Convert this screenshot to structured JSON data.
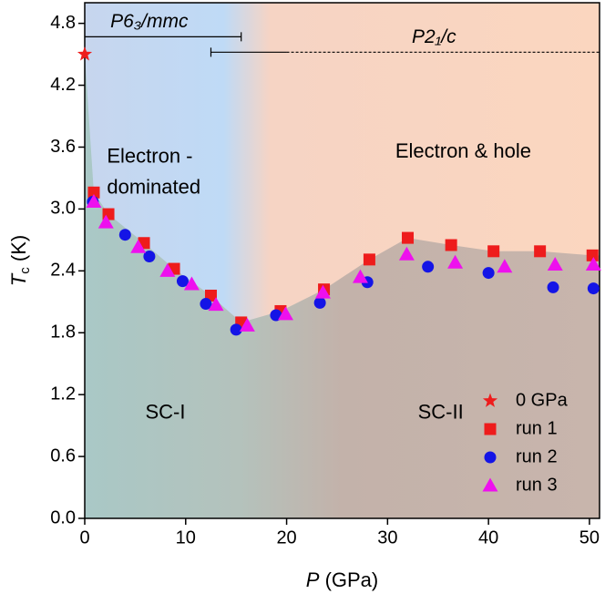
{
  "chart_data": {
    "type": "scatter",
    "x_label": {
      "symbol": "P",
      "unit": "(GPa)"
    },
    "y_label": {
      "symbol": "T",
      "subscript": "c",
      "unit": "(K)"
    },
    "xlim": [
      0,
      51
    ],
    "ylim": [
      0,
      5.0
    ],
    "xticks": [
      0,
      10,
      20,
      30,
      40,
      50
    ],
    "yticks": [
      {
        "value": 0,
        "label": "0.0"
      },
      {
        "value": 0.6,
        "label": "0.6"
      },
      {
        "value": 1.2,
        "label": "1.2"
      },
      {
        "value": 1.8,
        "label": "1.8"
      },
      {
        "value": 2.4,
        "label": "2.4"
      },
      {
        "value": 3.0,
        "label": "3.0"
      },
      {
        "value": 3.6,
        "label": "3.6"
      },
      {
        "value": 4.2,
        "label": "4.2"
      },
      {
        "value": 4.8,
        "label": "4.8"
      }
    ],
    "legend": "lower right",
    "series": [
      {
        "name": "0 GPa",
        "color": "#ee1c1c",
        "marker": "star",
        "x": [
          0
        ],
        "values": [
          4.5
        ]
      },
      {
        "name": "run 1",
        "color": "#ee1c1c",
        "marker": "square",
        "x": [
          0.9,
          2.35,
          5.87,
          8.85,
          12.5,
          15.5,
          19.4,
          23.7,
          28.2,
          32.0,
          36.3,
          40.5,
          45.1,
          50.3
        ],
        "values": [
          3.16,
          2.95,
          2.67,
          2.42,
          2.16,
          1.9,
          2.01,
          2.22,
          2.51,
          2.72,
          2.65,
          2.59,
          2.59,
          2.55
        ]
      },
      {
        "name": "run 2",
        "color": "#1414e6",
        "marker": "circle",
        "x": [
          0.8,
          4.0,
          6.4,
          9.7,
          12.0,
          15.0,
          18.95,
          23.3,
          28.0,
          34.0,
          40.0,
          46.4,
          50.4
        ],
        "values": [
          3.07,
          2.75,
          2.54,
          2.3,
          2.08,
          1.83,
          1.97,
          2.09,
          2.29,
          2.44,
          2.38,
          2.24,
          2.23
        ]
      },
      {
        "name": "run 3",
        "color": "#ee10ee",
        "marker": "triangle",
        "x": [
          0.9,
          2.1,
          5.3,
          8.2,
          10.6,
          13.0,
          16.1,
          19.9,
          23.6,
          27.3,
          31.9,
          36.7,
          41.6,
          46.6,
          50.4
        ],
        "values": [
          3.07,
          2.87,
          2.63,
          2.4,
          2.27,
          2.07,
          1.87,
          1.98,
          2.19,
          2.34,
          2.56,
          2.48,
          2.44,
          2.46,
          2.46
        ]
      }
    ],
    "phases": [
      {
        "label": "P6₃/mmc",
        "range": [
          0,
          15.5
        ],
        "y": 4.67
      },
      {
        "label": "P2₁/c",
        "range": [
          12.5,
          51
        ],
        "y": 4.52,
        "solid_to": 20
      }
    ],
    "annotations": [
      {
        "lines": [
          "Electron -",
          "dominated"
        ],
        "x": 2.2,
        "y": 3.5
      },
      {
        "lines": [
          "Electron & hole"
        ],
        "x": 37.5,
        "y": 3.55
      },
      {
        "lines": [
          "SC-I"
        ],
        "x": 6,
        "y": 1.02
      },
      {
        "lines": [
          "SC-II"
        ],
        "x": 33,
        "y": 1.02
      }
    ]
  }
}
